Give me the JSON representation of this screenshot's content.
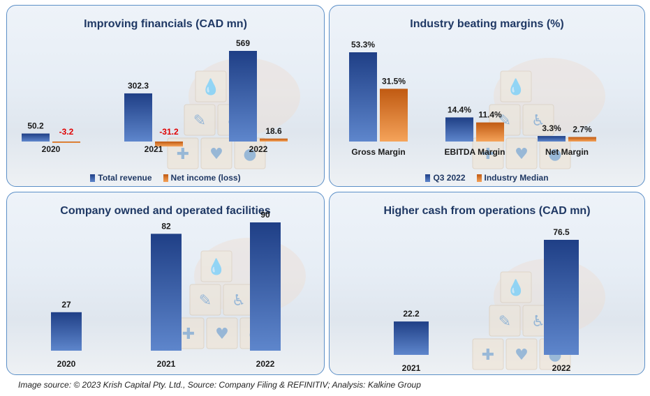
{
  "chart_data": [
    {
      "type": "bar",
      "title": "Improving financials (CAD mn)",
      "categories": [
        "2020",
        "2021",
        "2022"
      ],
      "series": [
        {
          "name": "Total revenue",
          "values": [
            50.2,
            302.3,
            569
          ]
        },
        {
          "name": "Net income (loss)",
          "values": [
            -3.2,
            -31.2,
            18.6
          ]
        }
      ],
      "value_labels": [
        [
          "50.2",
          "302.3",
          "569"
        ],
        [
          "-3.2",
          "-31.2",
          "18.6"
        ]
      ],
      "ylim": [
        -40,
        600
      ],
      "legend": "bottom",
      "grid": false
    },
    {
      "type": "bar",
      "title": "Industry beating margins (%)",
      "categories": [
        "Gross Margin",
        "EBITDA Margin",
        "Net Margin"
      ],
      "series": [
        {
          "name": "Q3 2022",
          "values": [
            53.3,
            14.4,
            3.3
          ]
        },
        {
          "name": "Industry Median",
          "values": [
            31.5,
            11.4,
            2.7
          ]
        }
      ],
      "value_labels": [
        [
          "53.3%",
          "14.4%",
          "3.3%"
        ],
        [
          "31.5%",
          "11.4%",
          "2.7%"
        ]
      ],
      "ylim": [
        0,
        60
      ],
      "legend": "bottom",
      "grid": false
    },
    {
      "type": "bar",
      "title": "Company owned and operated facilities",
      "categories": [
        "2020",
        "2021",
        "2022"
      ],
      "series": [
        {
          "values": [
            27,
            82,
            90
          ]
        }
      ],
      "value_labels": [
        [
          "27",
          "82",
          "90"
        ]
      ],
      "ylim": [
        0,
        100
      ],
      "grid": false
    },
    {
      "type": "bar",
      "title": "Higher cash from operations (CAD mn)",
      "categories": [
        "2021",
        "2022"
      ],
      "series": [
        {
          "values": [
            22.2,
            76.5
          ]
        }
      ],
      "value_labels": [
        [
          "22.2",
          "76.5"
        ]
      ],
      "ylim": [
        0,
        85
      ],
      "grid": false
    }
  ],
  "colors": {
    "series_blue_top": "#1f3f86",
    "series_blue_bottom": "#5e86cc",
    "series_orange_top": "#c05a12",
    "series_orange_bottom": "#f5a35a",
    "negative_label": "#e00000",
    "title": "#1f3864",
    "panel_border": "#5b8fc7"
  },
  "background_icons": [
    "medical-cross-icon",
    "heart-monitor-icon",
    "pills-icon",
    "syringe-icon",
    "wheelchair-icon",
    "drop-icon"
  ],
  "footer": "Image source: © 2023 Krish Capital Pty. Ltd., Source: Company Filing & REFINITIV; Analysis: Kalkine Group"
}
